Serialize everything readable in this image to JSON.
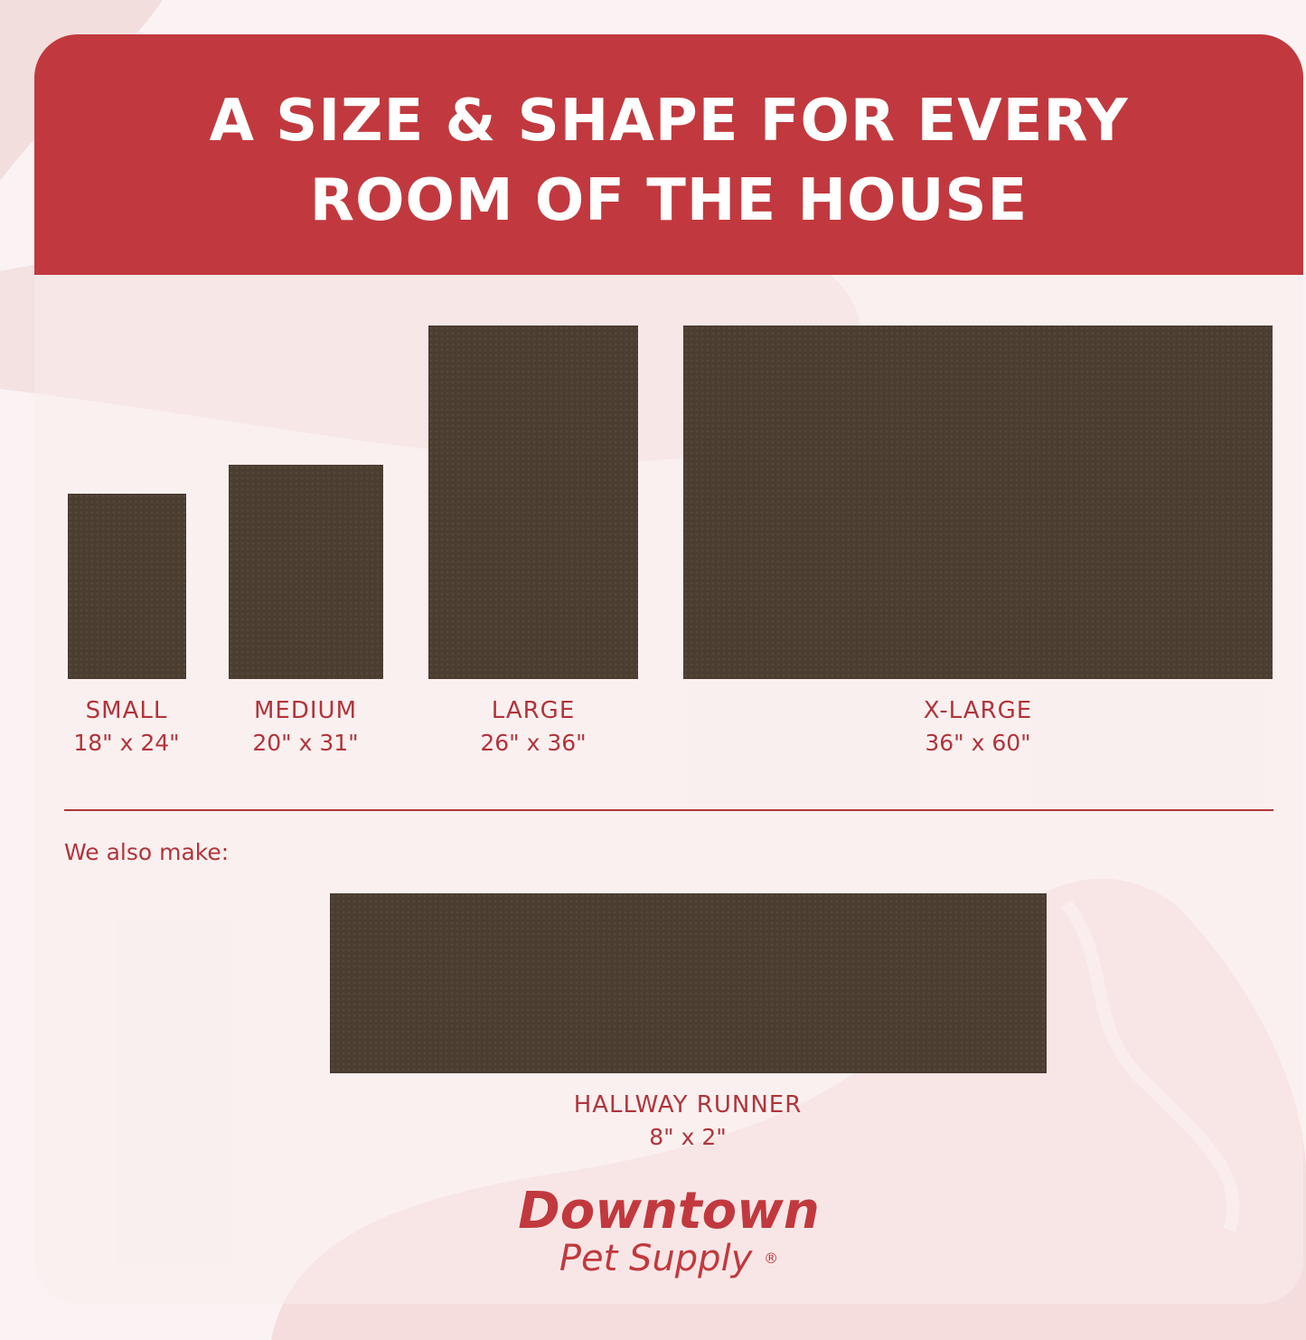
{
  "header": {
    "title_line1": "A SIZE & SHAPE FOR EVERY",
    "title_line2": "ROOM OF THE HOUSE"
  },
  "sizes": [
    {
      "name": "SMALL",
      "dims": "18\" x 24\""
    },
    {
      "name": "MEDIUM",
      "dims": "20\" x 31\""
    },
    {
      "name": "LARGE",
      "dims": "26\" x 36\""
    },
    {
      "name": "X-LARGE",
      "dims": "36\" x 60\""
    }
  ],
  "also": {
    "label": "We also make:",
    "name": "HALLWAY RUNNER",
    "dims": "8\" x 2\""
  },
  "logo": {
    "line1": "Downtown",
    "line2": "Pet Supply",
    "mark": "®"
  },
  "colors": {
    "brand_red": "#c1393e",
    "mat": "#4b3d2f",
    "text_red": "#b2343b"
  }
}
